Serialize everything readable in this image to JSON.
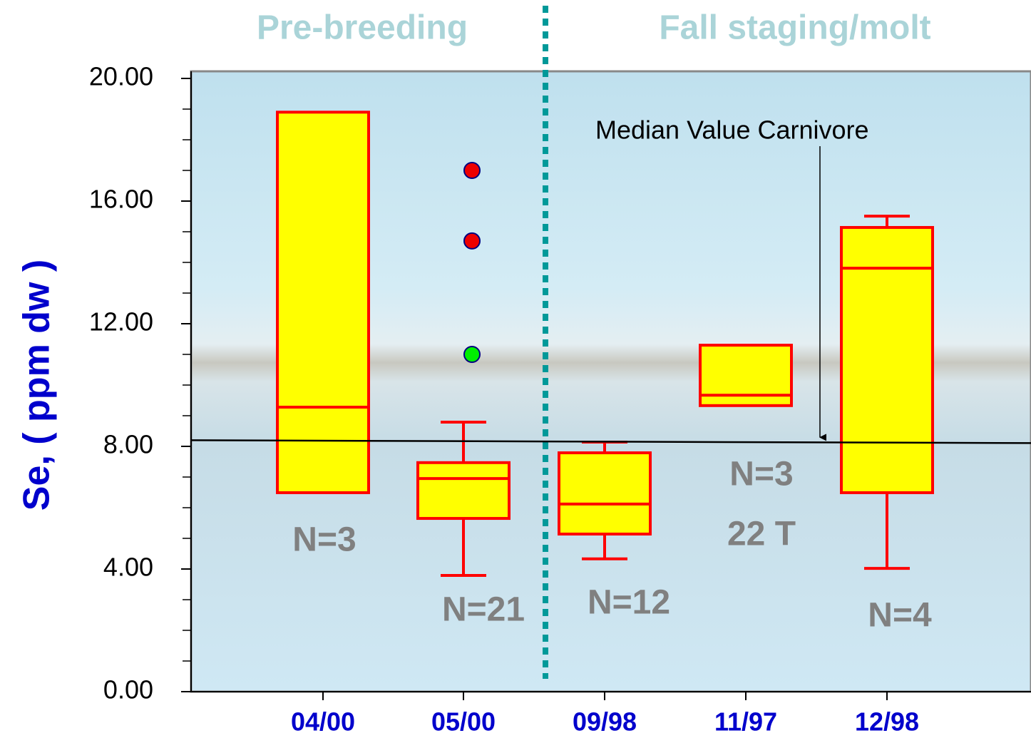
{
  "chart_data": {
    "type": "box",
    "sections": [
      "Pre-breeding",
      "Fall staging/molt"
    ],
    "y_label": "Se, ( ppm dw )",
    "categories": [
      "04/00",
      "05/00",
      "09/98",
      "11/97",
      "12/98"
    ],
    "boxes": [
      {
        "q1": 6.49,
        "median": 9.28,
        "q3": 18.9
      },
      {
        "whisker_low": 3.79,
        "q1": 5.65,
        "median": 6.95,
        "q3": 7.47,
        "whisker_high": 8.79,
        "outliers": [
          {
            "value": 17.0,
            "color": "#ee0000"
          },
          {
            "value": 14.7,
            "color": "#ee0000"
          },
          {
            "value": 11.0,
            "color": "#00ee00"
          }
        ]
      },
      {
        "whisker_low": 4.33,
        "q1": 5.14,
        "median": 6.12,
        "q3": 7.79,
        "whisker_high": 8.14
      },
      {
        "q1": 9.33,
        "median": 9.67,
        "q3": 11.3
      },
      {
        "whisker_low": 4.02,
        "q1": 6.49,
        "median": 13.81,
        "q3": 15.14,
        "whisker_high": 15.51
      }
    ],
    "box_color": "#ffff00",
    "line_color": "#ff0000",
    "annotations": [
      "N=3",
      "N=21",
      "N=12",
      "N=3",
      "22 T",
      "N=4"
    ],
    "reference_line": {
      "value": 8.2,
      "label": "Median Value Carnivore"
    },
    "ylim": [
      0,
      20
    ],
    "yticks": [
      {
        "value": 0,
        "label": "0.00"
      },
      {
        "value": 4,
        "label": "4.00"
      },
      {
        "value": 8,
        "label": "8.00"
      },
      {
        "value": 12,
        "label": "12.00"
      },
      {
        "value": 16,
        "label": "16.00"
      },
      {
        "value": 20,
        "label": "20.00"
      }
    ]
  }
}
